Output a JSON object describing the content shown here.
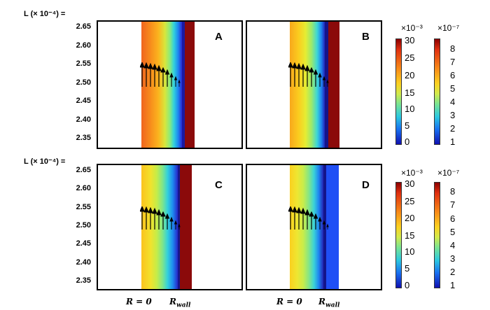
{
  "ylabel": "L (× 10⁻⁴) =",
  "yticks": [
    "2.65",
    "2.60",
    "2.55",
    "2.50",
    "2.45",
    "2.40",
    "2.35"
  ],
  "panels": [
    {
      "id": "A",
      "label": "A"
    },
    {
      "id": "B",
      "label": "B"
    },
    {
      "id": "C",
      "label": "C"
    },
    {
      "id": "D",
      "label": "D"
    }
  ],
  "colorbar_left": {
    "exponent": "×10⁻³",
    "ticks": [
      "30",
      "25",
      "20",
      "15",
      "10",
      "5",
      "0"
    ]
  },
  "colorbar_right": {
    "exponent": "×10⁻⁷",
    "ticks": [
      "8",
      "7",
      "6",
      "5",
      "4",
      "3",
      "2",
      "1"
    ]
  },
  "xaxis": {
    "r0_text": "R = 0",
    "rwall_text": "R",
    "rwall_sub": "wall"
  },
  "colors": {
    "wall_dark_red": "#8b0a0a",
    "wall_blue": "#1f4ff5"
  }
}
